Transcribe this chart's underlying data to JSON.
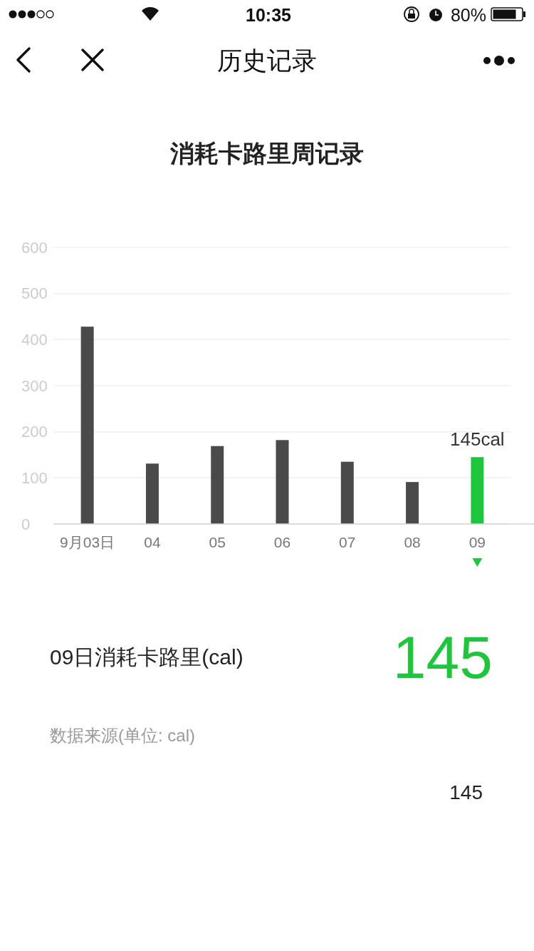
{
  "chart_data": {
    "type": "bar",
    "title": "消耗卡路里周记录",
    "categories": [
      "9月03日",
      "04",
      "05",
      "06",
      "07",
      "08",
      "09"
    ],
    "values": [
      428,
      131,
      169,
      182,
      135,
      91,
      145
    ],
    "colors": [
      "#4a4a4a",
      "#4a4a4a",
      "#4a4a4a",
      "#4a4a4a",
      "#4a4a4a",
      "#4a4a4a",
      "#1fc63d"
    ],
    "value_labels": [
      null,
      null,
      null,
      null,
      null,
      null,
      "145cal"
    ],
    "ylim": [
      0,
      600
    ],
    "yticks": [
      0,
      100,
      200,
      300,
      400,
      500,
      600
    ],
    "grid": "y",
    "annotations": [
      "历史记录",
      "10:35",
      "80%",
      "09日消耗卡路里(cal)",
      "145",
      "数据来源(单位: cal)",
      "145"
    ]
  }
}
